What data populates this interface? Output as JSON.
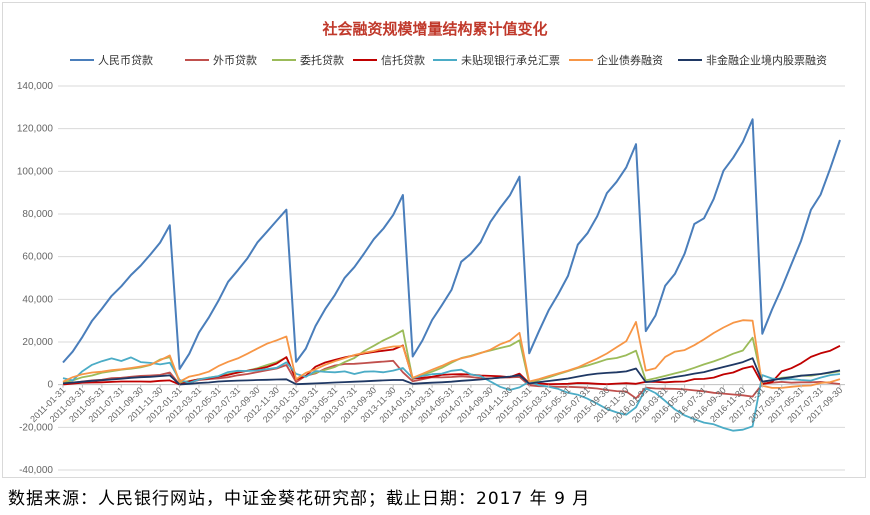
{
  "chart_data": {
    "type": "line",
    "title": "社会融资规模增量结构累计值变化",
    "xlabel": "",
    "ylabel": "",
    "ylim": [
      -40000,
      140000
    ],
    "yticks": [
      -40000,
      -20000,
      0,
      20000,
      40000,
      60000,
      80000,
      100000,
      120000,
      140000
    ],
    "ytick_labels": [
      "-40,000",
      "-20,000",
      "0",
      "20,000",
      "40,000",
      "60,000",
      "80,000",
      "100,000",
      "120,000",
      "140,000"
    ],
    "x": [
      "2011-01-31",
      "2011-02-28",
      "2011-03-31",
      "2011-04-30",
      "2011-05-31",
      "2011-06-30",
      "2011-07-31",
      "2011-08-31",
      "2011-09-30",
      "2011-10-31",
      "2011-11-30",
      "2011-12-31",
      "2012-01-31",
      "2012-02-29",
      "2012-03-31",
      "2012-04-30",
      "2012-05-31",
      "2012-06-30",
      "2012-07-31",
      "2012-08-31",
      "2012-09-30",
      "2012-10-31",
      "2012-11-30",
      "2012-12-31",
      "2013-01-31",
      "2013-02-28",
      "2013-03-31",
      "2013-04-30",
      "2013-05-31",
      "2013-06-30",
      "2013-07-31",
      "2013-08-31",
      "2013-09-30",
      "2013-10-31",
      "2013-11-30",
      "2013-12-31",
      "2014-01-31",
      "2014-02-28",
      "2014-03-31",
      "2014-04-30",
      "2014-05-31",
      "2014-06-30",
      "2014-07-31",
      "2014-08-31",
      "2014-09-30",
      "2014-10-31",
      "2014-11-30",
      "2014-12-31",
      "2015-01-31",
      "2015-02-28",
      "2015-03-31",
      "2015-04-30",
      "2015-05-31",
      "2015-06-30",
      "2015-07-31",
      "2015-08-31",
      "2015-09-30",
      "2015-10-31",
      "2015-11-30",
      "2015-12-31",
      "2016-01-31",
      "2016-02-29",
      "2016-03-31",
      "2016-04-30",
      "2016-05-31",
      "2016-06-30",
      "2016-07-31",
      "2016-08-31",
      "2016-09-30",
      "2016-10-31",
      "2016-11-30",
      "2016-12-31",
      "2017-01-31",
      "2017-02-28",
      "2017-03-31",
      "2017-04-30",
      "2017-05-31",
      "2017-06-30",
      "2017-07-31",
      "2017-08-31",
      "2017-09-30"
    ],
    "xtick_labels": [
      "2011-01-31",
      "2011-03-31",
      "2011-05-31",
      "2011-07-31",
      "2011-09-30",
      "2011-11-30",
      "2012-01-31",
      "2012-03-31",
      "2012-05-31",
      "2012-07-31",
      "2012-09-30",
      "2012-11-30",
      "2013-01-31",
      "2013-03-31",
      "2013-05-31",
      "2013-07-31",
      "2013-09-30",
      "2013-11-30",
      "2014-01-31",
      "2014-03-31",
      "2014-05-31",
      "2014-07-31",
      "2014-09-30",
      "2014-11-30",
      "2015-01-31",
      "2015-03-31",
      "2015-05-31",
      "2015-07-31",
      "2015-09-30",
      "2015-11-30",
      "2016-01-31",
      "2016-03-31",
      "2016-05-31",
      "2016-07-31",
      "2016-09-30",
      "2016-11-30",
      "2017-01-31",
      "2017-03-31",
      "2017-05-31",
      "2017-07-31",
      "2017-09-30"
    ],
    "legend_position": "top",
    "series": [
      {
        "name": "人民币贷款",
        "color": "#4a7ebb",
        "values": [
          10400,
          15500,
          22400,
          30000,
          35500,
          41600,
          46100,
          51400,
          55800,
          61000,
          66600,
          74700,
          7400,
          14500,
          24500,
          31400,
          39300,
          48200,
          53600,
          59300,
          66600,
          71700,
          76900,
          82000,
          10700,
          16900,
          27500,
          35400,
          42100,
          50100,
          55100,
          61500,
          68200,
          73200,
          79600,
          88900,
          13200,
          20700,
          30300,
          37200,
          44400,
          57600,
          61400,
          66800,
          76300,
          82800,
          88700,
          97500,
          14700,
          25000,
          34800,
          42500,
          51000,
          65600,
          71000,
          78900,
          89800,
          95100,
          101900,
          112700,
          25100,
          32400,
          46400,
          51900,
          61400,
          75300,
          78000,
          87100,
          100300,
          106400,
          113800,
          124400,
          23900,
          35200,
          45300,
          56400,
          67500,
          81900,
          89100,
          101400,
          114700
        ]
      },
      {
        "name": "外币贷款",
        "color": "#c0504d",
        "values": [
          300,
          800,
          1500,
          2000,
          2300,
          3100,
          3200,
          3700,
          4100,
          4300,
          4600,
          5700,
          100,
          1000,
          2200,
          2600,
          3000,
          3500,
          4400,
          5000,
          5900,
          6800,
          7600,
          9200,
          1200,
          4200,
          5300,
          7500,
          9000,
          9700,
          9800,
          10100,
          10500,
          10800,
          11200,
          5800,
          1600,
          2500,
          3500,
          3400,
          3600,
          3900,
          3600,
          3100,
          2900,
          3300,
          3400,
          3600,
          -300,
          -700,
          -800,
          -1000,
          -1000,
          -1200,
          -1400,
          -1800,
          -2500,
          -3000,
          -3200,
          -6400,
          -1400,
          -1800,
          -1900,
          -2000,
          -2200,
          -2700,
          -3100,
          -3800,
          -4200,
          -4600,
          -5000,
          -5600,
          300,
          900,
          1300,
          900,
          1100,
          1100,
          1300,
          800,
          300
        ]
      },
      {
        "name": "委托贷款",
        "color": "#9bbb59",
        "values": [
          1000,
          2000,
          3500,
          4300,
          5600,
          6300,
          7000,
          7500,
          8100,
          9200,
          11800,
          12900,
          1100,
          1700,
          2500,
          3300,
          3900,
          4900,
          5600,
          6600,
          7700,
          9200,
          10600,
          12800,
          2500,
          4200,
          5600,
          6900,
          8300,
          10600,
          12500,
          15800,
          18200,
          20800,
          22900,
          25500,
          2600,
          4600,
          6100,
          7900,
          10300,
          12500,
          13600,
          14900,
          16000,
          17200,
          18200,
          20800,
          800,
          2200,
          3400,
          4900,
          6300,
          7800,
          9000,
          10400,
          11900,
          12500,
          13800,
          15900,
          2000,
          3000,
          4100,
          5300,
          6400,
          7900,
          9500,
          10900,
          12600,
          14500,
          16000,
          22000,
          1400,
          2000,
          3200,
          3600,
          4200,
          4200,
          5000,
          5500,
          6300
        ]
      },
      {
        "name": "信托贷款",
        "color": "#c00000",
        "values": [
          100,
          500,
          900,
          1000,
          1100,
          1300,
          1500,
          1500,
          1500,
          1400,
          1800,
          2000,
          100,
          1600,
          2500,
          2900,
          3800,
          4600,
          5700,
          6500,
          7300,
          8300,
          9900,
          12900,
          2400,
          4100,
          8400,
          10400,
          11600,
          12800,
          13700,
          14600,
          15300,
          15900,
          16500,
          18400,
          2900,
          3200,
          3700,
          4600,
          4800,
          4900,
          4700,
          4300,
          4100,
          3900,
          3500,
          5200,
          700,
          600,
          200,
          300,
          400,
          800,
          700,
          400,
          200,
          500,
          700,
          400,
          1300,
          1300,
          1100,
          1400,
          1500,
          2600,
          2700,
          3300,
          4800,
          5700,
          7600,
          8600,
          300,
          1200,
          6200,
          7700,
          10000,
          13000,
          14700,
          15900,
          18200
        ]
      },
      {
        "name": "未贴现银行承兑汇票",
        "color": "#4bacc6",
        "values": [
          3100,
          2000,
          6300,
          9300,
          11000,
          12300,
          11100,
          12800,
          10600,
          10200,
          9500,
          10300,
          2200,
          900,
          2400,
          3200,
          4000,
          5900,
          6500,
          6400,
          6700,
          7300,
          7900,
          10500,
          5100,
          3700,
          6400,
          6000,
          5800,
          6200,
          5000,
          6100,
          6200,
          5800,
          6600,
          7800,
          3100,
          4100,
          4900,
          5200,
          6500,
          7000,
          4800,
          4000,
          1500,
          -1000,
          -2500,
          -1300,
          1400,
          -200,
          -1000,
          -2000,
          -3800,
          -4700,
          -6600,
          -8900,
          -11400,
          -13000,
          -14100,
          -10600,
          -1700,
          -3900,
          -7600,
          -11600,
          -14400,
          -16200,
          -17800,
          -18600,
          -20300,
          -21600,
          -21100,
          -19500,
          4500,
          2900,
          2400,
          2600,
          2200,
          1900,
          3300,
          4500,
          5000
        ]
      },
      {
        "name": "企业债券融资",
        "color": "#f79646",
        "values": [
          1400,
          3500,
          4900,
          5700,
          6100,
          6800,
          7200,
          7800,
          8500,
          9300,
          11400,
          13700,
          1400,
          3800,
          4700,
          6100,
          8700,
          10700,
          12300,
          14500,
          16900,
          19200,
          20800,
          22600,
          2500,
          5500,
          7200,
          9300,
          11000,
          12400,
          13900,
          15000,
          15800,
          17100,
          17900,
          18100,
          3200,
          5100,
          7000,
          8800,
          10900,
          12300,
          13300,
          14800,
          16400,
          18900,
          20600,
          24300,
          1500,
          2600,
          4000,
          5300,
          6600,
          8100,
          10200,
          12200,
          14600,
          17500,
          20400,
          29400,
          6600,
          7700,
          13000,
          15500,
          16200,
          18500,
          21200,
          24200,
          26800,
          29000,
          30200,
          30000,
          -500,
          -1500,
          -1500,
          -1000,
          -600,
          -400,
          800,
          1200,
          2600
        ]
      },
      {
        "name": "非金融企业境内股票融资",
        "color": "#1f3864",
        "values": [
          600,
          1000,
          1400,
          1800,
          2100,
          2400,
          2800,
          3200,
          3500,
          3700,
          4000,
          4400,
          100,
          400,
          800,
          1000,
          1500,
          1700,
          1900,
          2000,
          2200,
          2300,
          2400,
          2500,
          200,
          400,
          600,
          800,
          1000,
          1200,
          1400,
          1600,
          1800,
          2000,
          2200,
          2200,
          400,
          700,
          900,
          1100,
          1400,
          1800,
          2100,
          2400,
          2900,
          3300,
          3800,
          4400,
          500,
          1200,
          1700,
          2300,
          2900,
          3800,
          4600,
          5200,
          5500,
          5800,
          6200,
          7600,
          1200,
          1800,
          2800,
          3600,
          4300,
          5200,
          5900,
          7100,
          8300,
          9400,
          10600,
          12400,
          1400,
          2100,
          2900,
          3500,
          4200,
          4600,
          5000,
          5800,
          6700
        ]
      }
    ]
  },
  "source_note": "数据来源：人民银行网站，中证金葵花研究部；截止日期：2017 年 9 月"
}
